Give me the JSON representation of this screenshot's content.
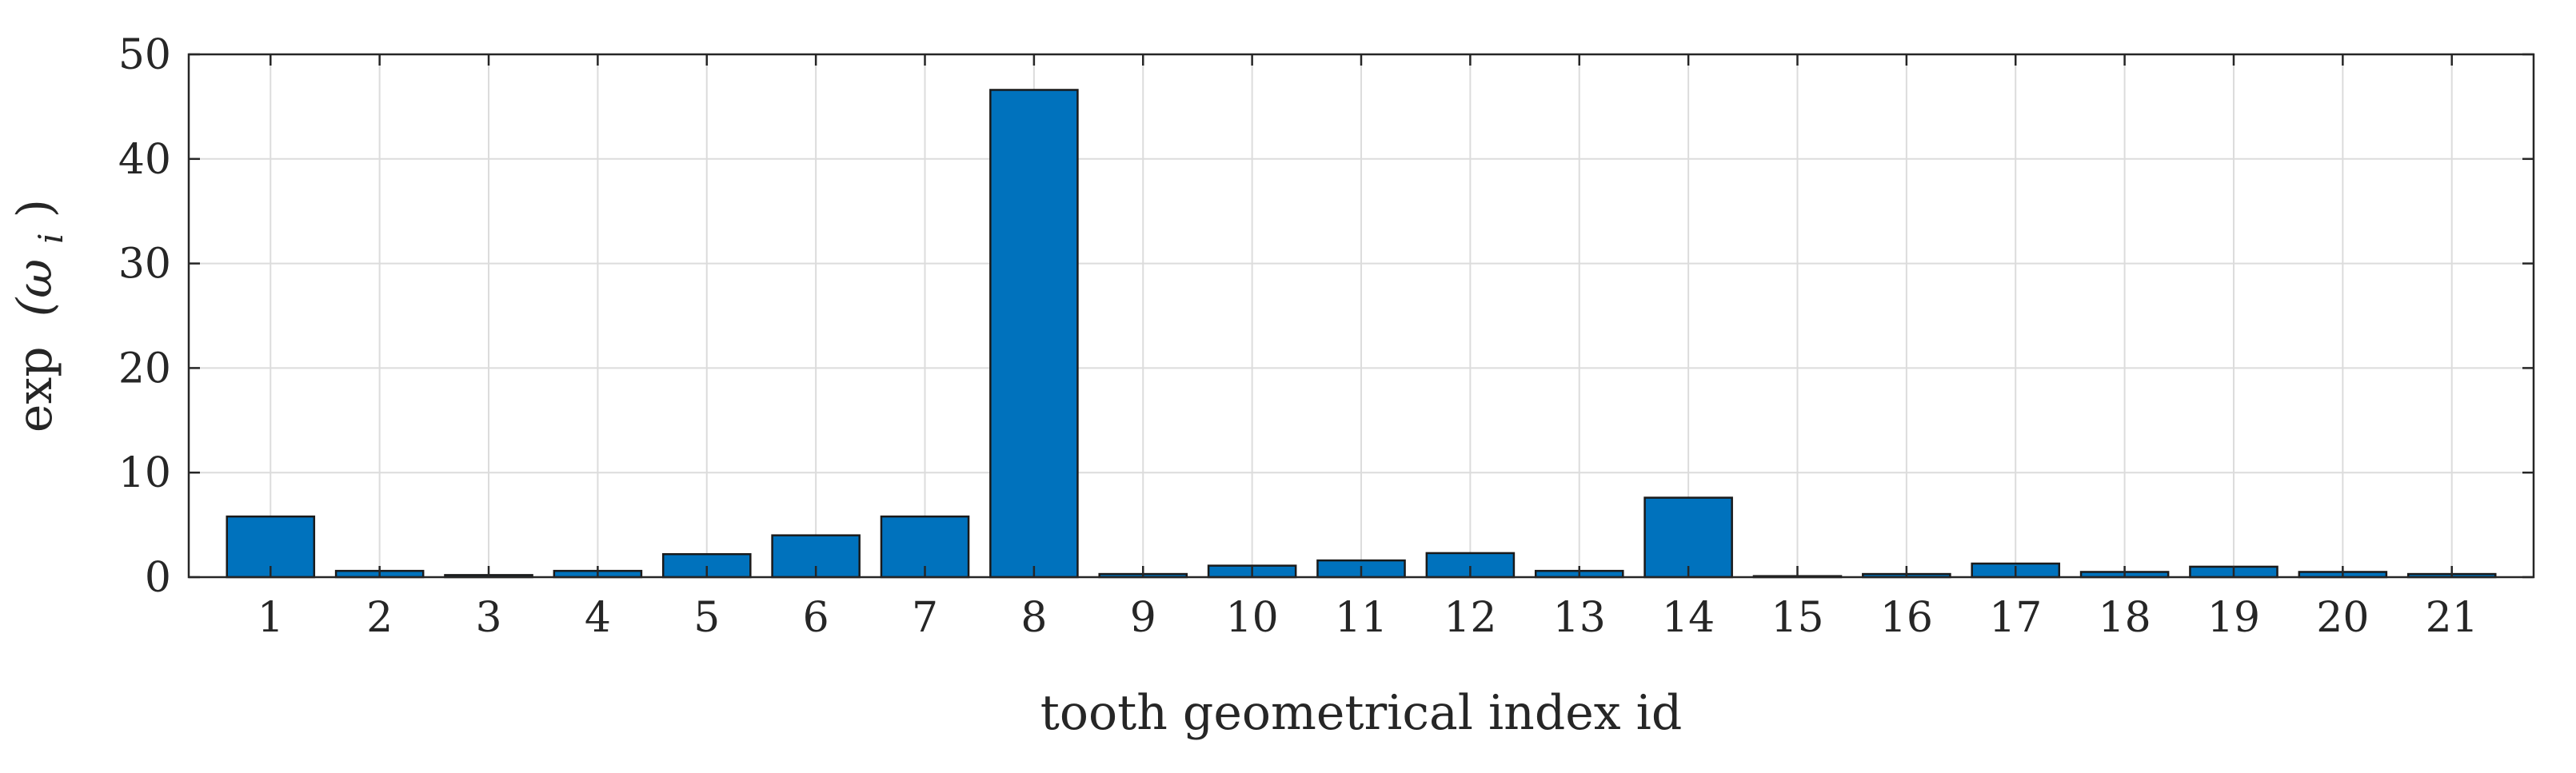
{
  "chart_data": {
    "type": "bar",
    "title": "",
    "xlabel": "tooth geometrical index id",
    "ylabel_base": "exp",
    "ylabel_paren": "(ω",
    "ylabel_sub": "i",
    "ylabel_close": ")",
    "categories": [
      "1",
      "2",
      "3",
      "4",
      "5",
      "6",
      "7",
      "8",
      "9",
      "10",
      "11",
      "12",
      "13",
      "14",
      "15",
      "16",
      "17",
      "18",
      "19",
      "20",
      "21"
    ],
    "values": [
      5.8,
      0.6,
      0.2,
      0.6,
      2.2,
      4.0,
      5.8,
      46.6,
      0.3,
      1.1,
      1.6,
      2.3,
      0.6,
      7.6,
      0.1,
      0.3,
      1.3,
      0.5,
      1.0,
      0.5,
      0.3
    ],
    "yticks": [
      "0",
      "10",
      "20",
      "30",
      "40",
      "50"
    ],
    "ylim": [
      0,
      50
    ],
    "xlim": [
      0.25,
      21.75
    ],
    "grid": true,
    "bar_color": "#0072bd",
    "edge_color": "#1a1a1a"
  }
}
